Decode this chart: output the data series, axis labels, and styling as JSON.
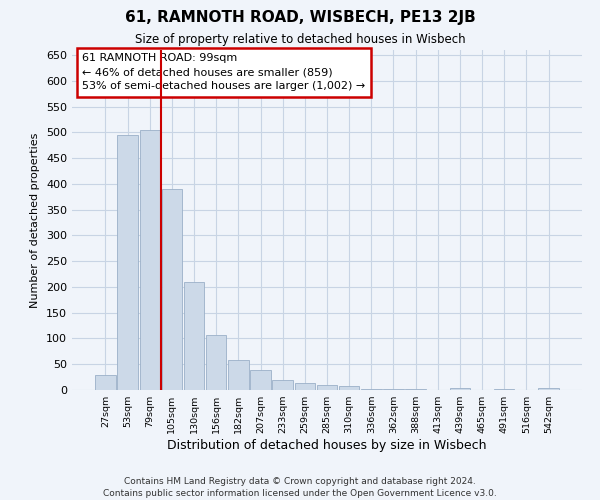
{
  "title": "61, RAMNOTH ROAD, WISBECH, PE13 2JB",
  "subtitle": "Size of property relative to detached houses in Wisbech",
  "xlabel": "Distribution of detached houses by size in Wisbech",
  "ylabel": "Number of detached properties",
  "bar_labels": [
    "27sqm",
    "53sqm",
    "79sqm",
    "105sqm",
    "130sqm",
    "156sqm",
    "182sqm",
    "207sqm",
    "233sqm",
    "259sqm",
    "285sqm",
    "310sqm",
    "336sqm",
    "362sqm",
    "388sqm",
    "413sqm",
    "439sqm",
    "465sqm",
    "491sqm",
    "516sqm",
    "542sqm"
  ],
  "bar_values": [
    30,
    495,
    505,
    390,
    210,
    107,
    58,
    38,
    19,
    14,
    10,
    8,
    2,
    2,
    1,
    0,
    3,
    0,
    2,
    0,
    3
  ],
  "bar_color": "#ccd9e8",
  "bar_edge_color": "#9bb0c8",
  "vline_color": "#cc0000",
  "vline_pos": 2.5,
  "ylim": [
    0,
    660
  ],
  "yticks": [
    0,
    50,
    100,
    150,
    200,
    250,
    300,
    350,
    400,
    450,
    500,
    550,
    600,
    650
  ],
  "annotation_title": "61 RAMNOTH ROAD: 99sqm",
  "annotation_line1": "← 46% of detached houses are smaller (859)",
  "annotation_line2": "53% of semi-detached houses are larger (1,002) →",
  "footer_line1": "Contains HM Land Registry data © Crown copyright and database right 2024.",
  "footer_line2": "Contains public sector information licensed under the Open Government Licence v3.0.",
  "background_color": "#f0f4fa",
  "grid_color": "#c8d4e4"
}
